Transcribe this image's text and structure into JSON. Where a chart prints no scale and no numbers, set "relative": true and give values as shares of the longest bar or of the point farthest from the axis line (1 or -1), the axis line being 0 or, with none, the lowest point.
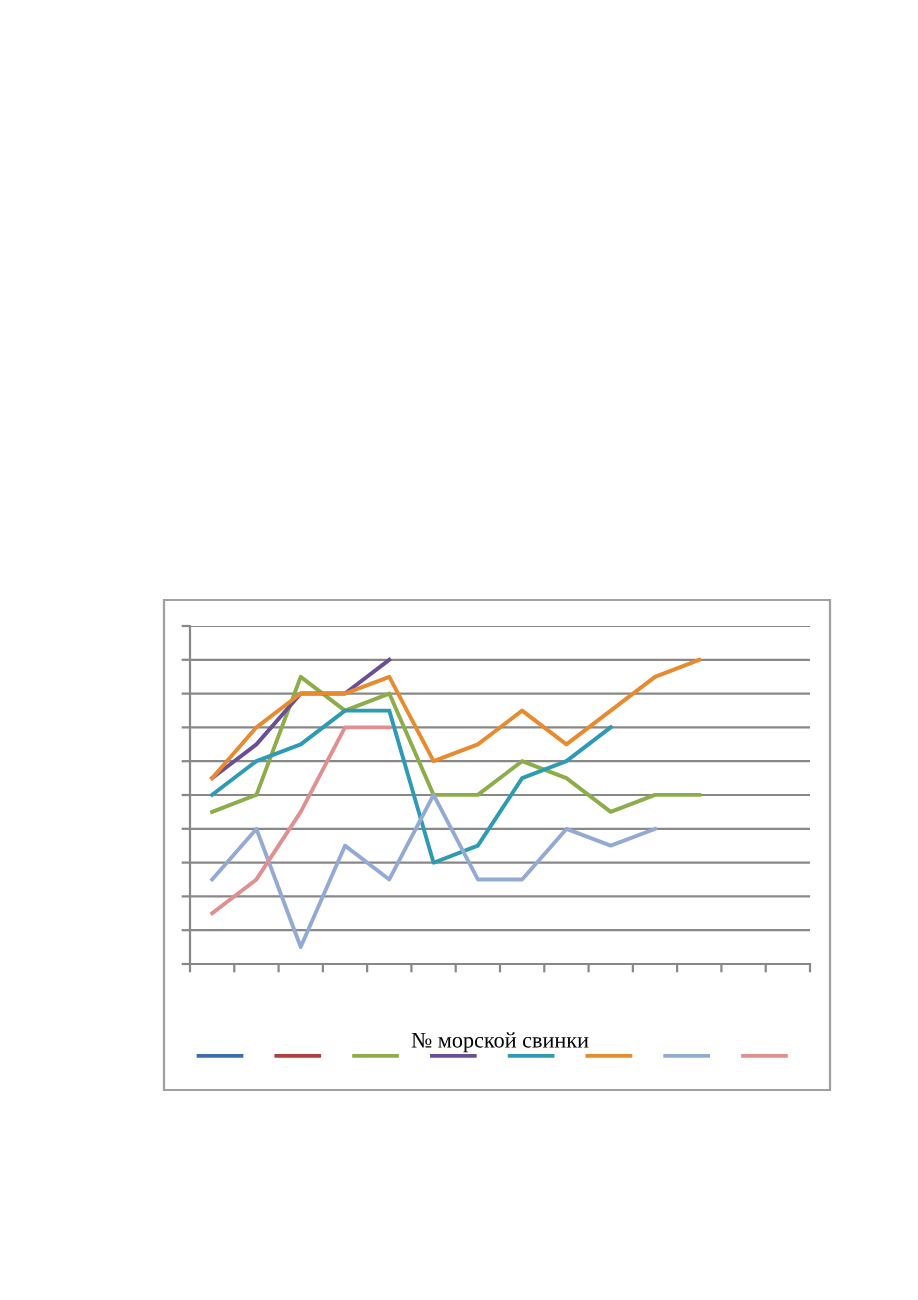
{
  "chart_data": {
    "type": "line",
    "relative": true,
    "xlabel": "№ морской свинки",
    "grid": "y",
    "categories": [
      null,
      null,
      null,
      null,
      null,
      null,
      null,
      null,
      null,
      null,
      null,
      null,
      null,
      null
    ],
    "series": [
      {
        "color": "#3a6daf",
        "values": [
          null,
          null,
          null,
          null,
          null,
          null,
          null,
          null,
          null,
          null,
          null,
          null,
          null,
          null
        ]
      },
      {
        "color": "#b0403c",
        "values": [
          null,
          null,
          null,
          null,
          null,
          null,
          null,
          null,
          null,
          null,
          null,
          null,
          null,
          null
        ]
      },
      {
        "color": "#8cad4a",
        "values": [
          0.5,
          0.556,
          0.944,
          0.833,
          0.889,
          0.556,
          0.556,
          0.667,
          0.611,
          0.5,
          0.556,
          0.556,
          null,
          null
        ]
      },
      {
        "color": "#6a4f96",
        "values": [
          0.611,
          0.722,
          0.889,
          0.889,
          1,
          null,
          null,
          null,
          null,
          null,
          null,
          null,
          null,
          null
        ]
      },
      {
        "color": "#2e9ab3",
        "values": [
          0.556,
          0.667,
          0.722,
          0.833,
          0.833,
          0.333,
          0.389,
          0.611,
          0.667,
          0.778,
          null,
          null,
          null,
          null
        ]
      },
      {
        "color": "#e88a2e",
        "values": [
          0.611,
          0.778,
          0.889,
          0.889,
          0.944,
          0.667,
          0.722,
          0.833,
          0.722,
          0.833,
          0.944,
          1,
          null,
          null
        ]
      },
      {
        "color": "#93aad4",
        "values": [
          0.278,
          0.444,
          0.056,
          0.389,
          0.278,
          0.556,
          0.278,
          0.278,
          0.444,
          0.389,
          0.444,
          null,
          null,
          null
        ]
      },
      {
        "color": "#e0908e",
        "values": [
          0.167,
          0.278,
          0.5,
          0.778,
          0.778,
          null,
          null,
          null,
          null,
          null,
          null,
          null,
          null,
          null
        ]
      }
    ]
  }
}
